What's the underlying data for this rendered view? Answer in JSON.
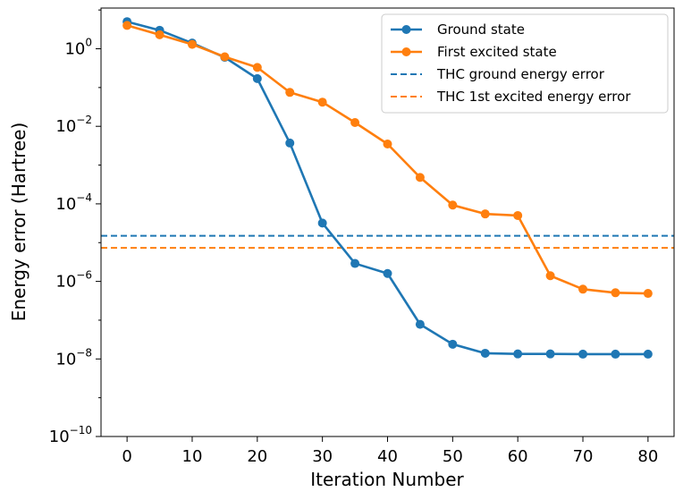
{
  "chart_data": {
    "type": "line",
    "xlabel": "Iteration Number",
    "ylabel": "Energy error (Hartree)",
    "yscale": "log",
    "xlim": [
      -4,
      84
    ],
    "ylim_log10": [
      -10,
      1.05
    ],
    "x_ticks": [
      0,
      10,
      20,
      30,
      40,
      50,
      60,
      70,
      80
    ],
    "y_ticks": [
      {
        "base": "10",
        "exp": "0",
        "value": 0
      },
      {
        "base": "10",
        "exp": "−2",
        "value": -2
      },
      {
        "base": "10",
        "exp": "−4",
        "value": -4
      },
      {
        "base": "10",
        "exp": "−6",
        "value": -6
      },
      {
        "base": "10",
        "exp": "−8",
        "value": -8
      },
      {
        "base": "10",
        "exp": "−10",
        "value": -10
      }
    ],
    "x": [
      0,
      5,
      10,
      15,
      20,
      25,
      30,
      35,
      40,
      45,
      50,
      55,
      60,
      65,
      70,
      75,
      80
    ],
    "series": [
      {
        "name": "Ground state",
        "color": "#1f77b4",
        "style": "line-marker",
        "values": [
          5.0,
          3.0,
          1.4,
          0.6,
          0.17,
          0.0037,
          3.2e-05,
          2.9e-06,
          1.6e-06,
          7.8e-08,
          2.4e-08,
          1.4e-08,
          1.35e-08,
          1.35e-08,
          1.33e-08,
          1.33e-08,
          1.33e-08
        ]
      },
      {
        "name": "First excited state",
        "color": "#ff7f0e",
        "style": "line-marker",
        "values": [
          4.0,
          2.3,
          1.3,
          0.62,
          0.33,
          0.075,
          0.042,
          0.0125,
          0.0035,
          0.00048,
          9.3e-05,
          5.5e-05,
          5e-05,
          1.4e-06,
          6.3e-07,
          5.1e-07,
          4.9e-07
        ]
      }
    ],
    "hlines": [
      {
        "name": "THC ground energy error",
        "color": "#1f77b4",
        "style": "dashed",
        "value": 1.5e-05
      },
      {
        "name": "THC 1st excited energy error",
        "color": "#ff7f0e",
        "style": "dashed",
        "value": 7.3e-06
      }
    ],
    "legend": {
      "location": "top-right",
      "entries": [
        "Ground state",
        "First excited state",
        "THC ground energy error",
        "THC 1st excited energy error"
      ]
    },
    "grid": false
  }
}
